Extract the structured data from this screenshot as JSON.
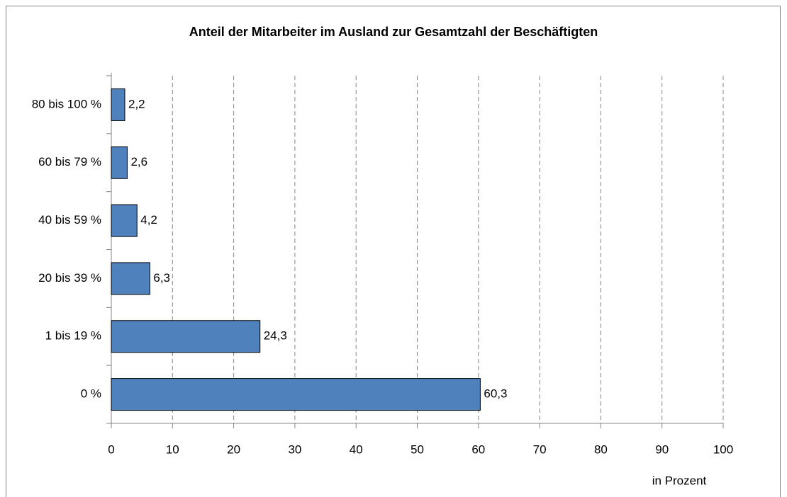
{
  "chart_data": {
    "type": "hbar",
    "title": "Anteil der Mitarbeiter im Ausland zur Gesamtzahl der Beschäftigten",
    "x_label": "in Prozent",
    "categories": [
      "80 bis 100 %",
      "60 bis 79 %",
      "40 bis 59 %",
      "20 bis 39 %",
      "1 bis 19 %",
      "0 %"
    ],
    "values": [
      2.2,
      2.6,
      4.2,
      6.3,
      24.3,
      60.3
    ],
    "value_labels": [
      "2,2",
      "2,6",
      "4,2",
      "6,3",
      "24,3",
      "60,3"
    ],
    "color": "#4f81bd",
    "xlim": [
      0,
      100
    ],
    "xticks": [
      0,
      10,
      20,
      30,
      40,
      50,
      60,
      70,
      80,
      90,
      100
    ],
    "grid": true
  }
}
